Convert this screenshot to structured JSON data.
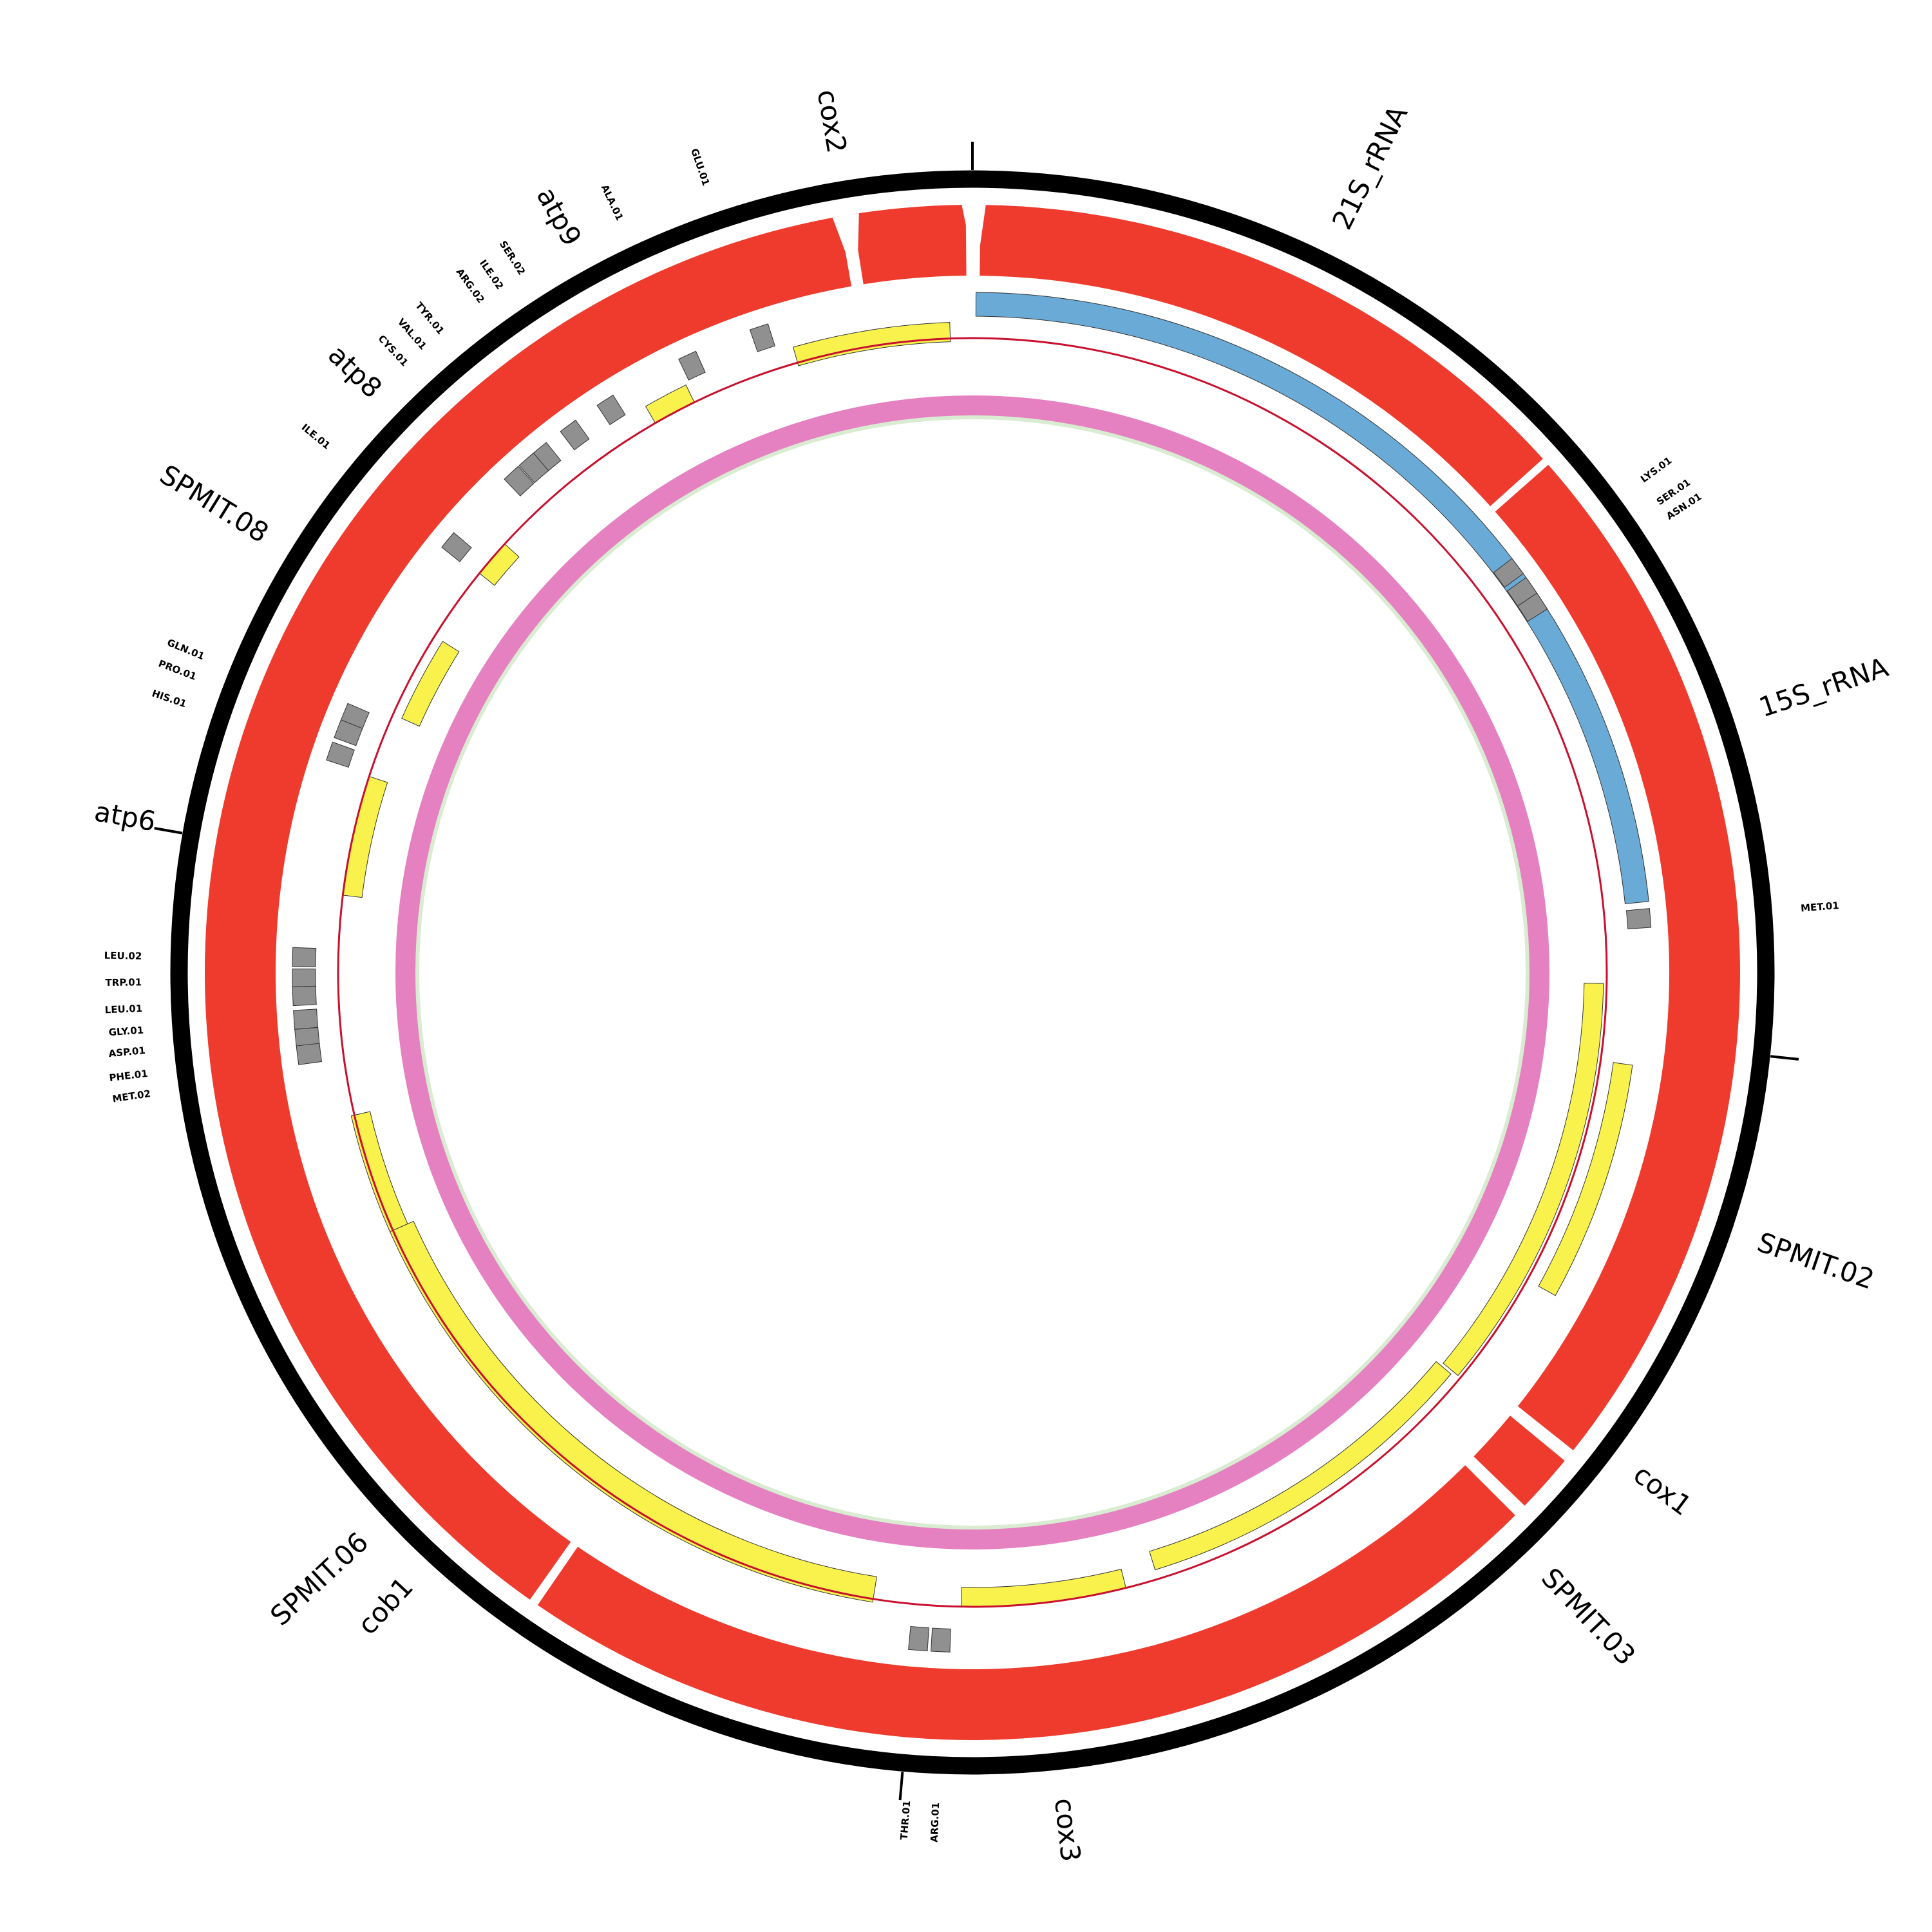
{
  "genes": [
    "cox2",
    "21S_rRNA",
    "15S_rRNA",
    "SPMIT.02",
    "cox1",
    "SPMIT.03",
    "cox3",
    "cob1",
    "SPMIT.06",
    "atp6",
    "SPMIT.08",
    "atp8",
    "atp9"
  ],
  "trnas": [
    "GLU.01",
    "ALA.01",
    "SER.02",
    "ILE.02",
    "ARG.02",
    "TYR.01",
    "VAL.01",
    "CYS.01",
    "ILE.01",
    "GLN.01",
    "PRO.01",
    "HIS.01",
    "LEU.02",
    "TRP.01",
    "LEU.01",
    "GLY.01",
    "ASP.01",
    "PHE.01",
    "MET.02",
    "LYS.01",
    "SER.01",
    "ASN.01",
    "MET.01",
    "THR.01",
    "ARG.01"
  ]
}
